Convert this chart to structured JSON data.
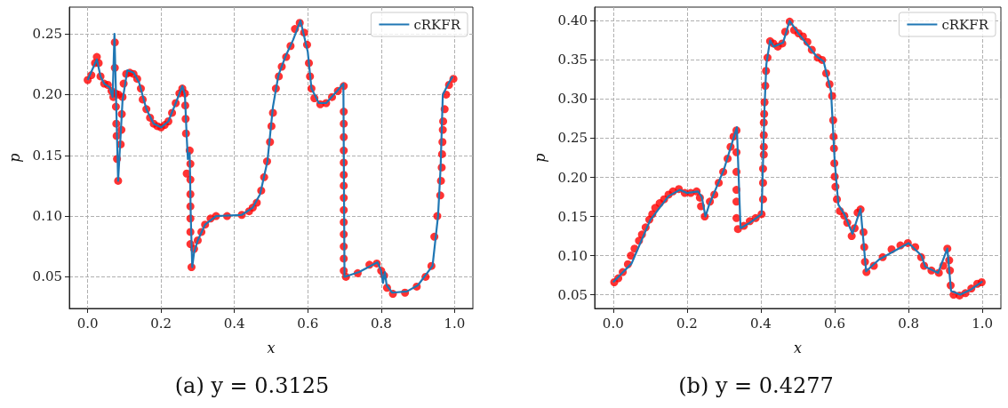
{
  "chart_data": [
    {
      "type": "scatter",
      "title": "(a) y = 0.3125",
      "xlabel": "x",
      "ylabel": "p",
      "xlim": [
        -0.05,
        1.05
      ],
      "ylim": [
        0.024,
        0.272
      ],
      "xticks": [
        {
          "value": 0,
          "label": "0.0"
        },
        {
          "value": 0.2,
          "label": "0.2"
        },
        {
          "value": 0.4,
          "label": "0.4"
        },
        {
          "value": 0.6,
          "label": "0.6"
        },
        {
          "value": 0.8,
          "label": "0.8"
        },
        {
          "value": 1,
          "label": "1.0"
        }
      ],
      "yticks": [
        {
          "value": 0.05,
          "label": "0.05"
        },
        {
          "value": 0.1,
          "label": "0.10"
        },
        {
          "value": 0.15,
          "label": "0.15"
        },
        {
          "value": 0.2,
          "label": "0.20"
        },
        {
          "value": 0.25,
          "label": "0.25"
        }
      ],
      "grid": true,
      "legend": "top right",
      "line_style": "solid",
      "series": [
        {
          "marker": "circle",
          "color": "#ff0000",
          "x": [
            0,
            0.01,
            0.02,
            0.025,
            0.03,
            0.035,
            0.045,
            0.055,
            0.065,
            0.07,
            0.074,
            0.074,
            0.076,
            0.077,
            0.078,
            0.079,
            0.08,
            0.083,
            0.084,
            0.09,
            0.092,
            0.093,
            0.095,
            0.098,
            0.105,
            0.115,
            0.125,
            0.135,
            0.145,
            0.15,
            0.16,
            0.17,
            0.18,
            0.19,
            0.2,
            0.21,
            0.22,
            0.23,
            0.24,
            0.25,
            0.258,
            0.265,
            0.266,
            0.267,
            0.268,
            0.27,
            0.278,
            0.28,
            0.28,
            0.28,
            0.28,
            0.28,
            0.28,
            0.28,
            0.283,
            0.29,
            0.3,
            0.31,
            0.32,
            0.335,
            0.35,
            0.38,
            0.42,
            0.44,
            0.45,
            0.461,
            0.473,
            0.481,
            0.489,
            0.497,
            0.501,
            0.505,
            0.513,
            0.521,
            0.529,
            0.541,
            0.553,
            0.565,
            0.578,
            0.59,
            0.598,
            0.603,
            0.606,
            0.61,
            0.618,
            0.634,
            0.65,
            0.666,
            0.682,
            0.698,
            0.698,
            0.698,
            0.698,
            0.698,
            0.698,
            0.698,
            0.698,
            0.698,
            0.698,
            0.698,
            0.698,
            0.698,
            0.698,
            0.698,
            0.704,
            0.736,
            0.768,
            0.788,
            0.8,
            0.808,
            0.816,
            0.832,
            0.865,
            0.897,
            0.921,
            0.937,
            0.945,
            0.953,
            0.961,
            0.963,
            0.965,
            0.966,
            0.967,
            0.968,
            0.969,
            0.973,
            0.977,
            0.985,
            0.997
          ],
          "values": [
            0.212,
            0.216,
            0.226,
            0.231,
            0.226,
            0.215,
            0.209,
            0.208,
            0.203,
            0.198,
            0.243,
            0.222,
            0.201,
            0.19,
            0.176,
            0.166,
            0.147,
            0.129,
            0.2,
            0.159,
            0.171,
            0.184,
            0.198,
            0.209,
            0.217,
            0.218,
            0.217,
            0.213,
            0.205,
            0.196,
            0.188,
            0.181,
            0.176,
            0.174,
            0.173,
            0.175,
            0.178,
            0.185,
            0.193,
            0.201,
            0.205,
            0.201,
            0.191,
            0.18,
            0.168,
            0.135,
            0.154,
            0.143,
            0.13,
            0.118,
            0.108,
            0.098,
            0.087,
            0.077,
            0.058,
            0.073,
            0.08,
            0.087,
            0.093,
            0.098,
            0.1,
            0.1,
            0.101,
            0.104,
            0.107,
            0.111,
            0.121,
            0.132,
            0.145,
            0.161,
            0.174,
            0.185,
            0.205,
            0.215,
            0.223,
            0.231,
            0.24,
            0.254,
            0.259,
            0.251,
            0.241,
            0.226,
            0.215,
            0.205,
            0.197,
            0.192,
            0.193,
            0.198,
            0.203,
            0.207,
            0.186,
            0.176,
            0.165,
            0.154,
            0.144,
            0.134,
            0.125,
            0.115,
            0.105,
            0.095,
            0.085,
            0.075,
            0.065,
            0.055,
            0.05,
            0.053,
            0.06,
            0.061,
            0.055,
            0.051,
            0.041,
            0.036,
            0.037,
            0.042,
            0.05,
            0.059,
            0.083,
            0.1,
            0.117,
            0.129,
            0.14,
            0.151,
            0.161,
            0.171,
            0.178,
            0.188,
            0.2,
            0.208,
            0.213
          ]
        },
        {
          "type": "line",
          "marker": "none",
          "name": "cRKFR",
          "color": "#1f77b4",
          "x": [
            0,
            0.025,
            0.035,
            0.045,
            0.06,
            0.068,
            0.073,
            0.083,
            0.095,
            0.108,
            0.125,
            0.14,
            0.16,
            0.18,
            0.2,
            0.22,
            0.24,
            0.258,
            0.265,
            0.27,
            0.273,
            0.278,
            0.281,
            0.285,
            0.29,
            0.3,
            0.32,
            0.35,
            0.42,
            0.45,
            0.47,
            0.49,
            0.505,
            0.52,
            0.54,
            0.56,
            0.58,
            0.6,
            0.61,
            0.63,
            0.65,
            0.68,
            0.697,
            0.7,
            0.74,
            0.79,
            0.8,
            0.805,
            0.81,
            0.815,
            0.83,
            0.87,
            0.9,
            0.94,
            0.955,
            0.962,
            0.968,
            0.985,
            0.995
          ],
          "values": [
            0.212,
            0.229,
            0.215,
            0.209,
            0.206,
            0.198,
            0.25,
            0.129,
            0.195,
            0.22,
            0.218,
            0.21,
            0.188,
            0.176,
            0.173,
            0.178,
            0.193,
            0.207,
            0.2,
            0.165,
            0.147,
            0.152,
            0.1,
            0.058,
            0.07,
            0.08,
            0.093,
            0.1,
            0.101,
            0.107,
            0.118,
            0.145,
            0.19,
            0.216,
            0.232,
            0.245,
            0.261,
            0.235,
            0.205,
            0.193,
            0.193,
            0.203,
            0.209,
            0.05,
            0.054,
            0.062,
            0.055,
            0.045,
            0.054,
            0.043,
            0.037,
            0.038,
            0.043,
            0.059,
            0.1,
            0.14,
            0.2,
            0.21,
            0.215
          ]
        }
      ]
    },
    {
      "type": "scatter",
      "title": "(b) y = 0.4277",
      "xlabel": "x",
      "ylabel": "p",
      "xlim": [
        -0.05,
        1.05
      ],
      "ylim": [
        0.0325,
        0.4175
      ],
      "xticks": [
        {
          "value": 0,
          "label": "0.0"
        },
        {
          "value": 0.2,
          "label": "0.2"
        },
        {
          "value": 0.4,
          "label": "0.4"
        },
        {
          "value": 0.6,
          "label": "0.6"
        },
        {
          "value": 0.8,
          "label": "0.8"
        },
        {
          "value": 1,
          "label": "1.0"
        }
      ],
      "yticks": [
        {
          "value": 0.05,
          "label": "0.05"
        },
        {
          "value": 0.1,
          "label": "0.10"
        },
        {
          "value": 0.15,
          "label": "0.15"
        },
        {
          "value": 0.2,
          "label": "0.20"
        },
        {
          "value": 0.25,
          "label": "0.25"
        },
        {
          "value": 0.3,
          "label": "0.30"
        },
        {
          "value": 0.35,
          "label": "0.35"
        },
        {
          "value": 0.4,
          "label": "0.40"
        }
      ],
      "grid": true,
      "legend": "top right",
      "line_style": "solid",
      "series": [
        {
          "marker": "circle",
          "color": "#ff0000",
          "x": [
            0.003,
            0.014,
            0.026,
            0.04,
            0.048,
            0.058,
            0.07,
            0.078,
            0.088,
            0.098,
            0.106,
            0.114,
            0.126,
            0.138,
            0.15,
            0.162,
            0.178,
            0.194,
            0.21,
            0.226,
            0.235,
            0.238,
            0.248,
            0.262,
            0.274,
            0.286,
            0.298,
            0.31,
            0.318,
            0.326,
            0.334,
            0.334,
            0.334,
            0.334,
            0.334,
            0.334,
            0.338,
            0.354,
            0.37,
            0.386,
            0.402,
            0.406,
            0.406,
            0.406,
            0.408,
            0.408,
            0.408,
            0.408,
            0.409,
            0.41,
            0.412,
            0.414,
            0.418,
            0.425,
            0.434,
            0.446,
            0.458,
            0.466,
            0.478,
            0.49,
            0.502,
            0.514,
            0.526,
            0.538,
            0.554,
            0.566,
            0.577,
            0.586,
            0.593,
            0.596,
            0.597,
            0.598,
            0.599,
            0.6,
            0.602,
            0.606,
            0.614,
            0.626,
            0.634,
            0.646,
            0.654,
            0.662,
            0.67,
            0.678,
            0.68,
            0.682,
            0.686,
            0.706,
            0.73,
            0.754,
            0.778,
            0.798,
            0.818,
            0.834,
            0.842,
            0.862,
            0.882,
            0.894,
            0.905,
            0.91,
            0.912,
            0.914,
            0.922,
            0.938,
            0.954,
            0.97,
            0.986,
            0.998
          ],
          "values": [
            0.066,
            0.071,
            0.079,
            0.089,
            0.1,
            0.109,
            0.119,
            0.127,
            0.136,
            0.146,
            0.153,
            0.161,
            0.167,
            0.172,
            0.178,
            0.182,
            0.185,
            0.18,
            0.18,
            0.182,
            0.174,
            0.163,
            0.15,
            0.169,
            0.178,
            0.193,
            0.207,
            0.224,
            0.239,
            0.252,
            0.26,
            0.232,
            0.207,
            0.184,
            0.169,
            0.148,
            0.134,
            0.138,
            0.144,
            0.148,
            0.153,
            0.172,
            0.193,
            0.211,
            0.229,
            0.239,
            0.254,
            0.27,
            0.281,
            0.296,
            0.317,
            0.336,
            0.353,
            0.374,
            0.371,
            0.367,
            0.371,
            0.386,
            0.399,
            0.388,
            0.384,
            0.38,
            0.373,
            0.363,
            0.353,
            0.35,
            0.333,
            0.319,
            0.304,
            0.273,
            0.252,
            0.237,
            0.218,
            0.201,
            0.188,
            0.172,
            0.157,
            0.151,
            0.142,
            0.125,
            0.135,
            0.155,
            0.159,
            0.13,
            0.111,
            0.092,
            0.079,
            0.087,
            0.098,
            0.108,
            0.113,
            0.116,
            0.111,
            0.098,
            0.087,
            0.081,
            0.078,
            0.087,
            0.109,
            0.094,
            0.081,
            0.062,
            0.05,
            0.049,
            0.052,
            0.058,
            0.064,
            0.066
          ]
        },
        {
          "type": "line",
          "marker": "none",
          "name": "cRKFR",
          "color": "#1f77b4",
          "x": [
            0,
            0.05,
            0.1,
            0.15,
            0.18,
            0.2,
            0.23,
            0.24,
            0.25,
            0.26,
            0.3,
            0.335,
            0.345,
            0.37,
            0.402,
            0.41,
            0.415,
            0.425,
            0.435,
            0.46,
            0.478,
            0.5,
            0.55,
            0.57,
            0.59,
            0.6,
            0.61,
            0.626,
            0.648,
            0.67,
            0.685,
            0.72,
            0.8,
            0.835,
            0.845,
            0.88,
            0.905,
            0.915,
            0.94,
            0.97,
            1.0
          ],
          "values": [
            0.066,
            0.09,
            0.145,
            0.176,
            0.184,
            0.18,
            0.182,
            0.175,
            0.15,
            0.165,
            0.21,
            0.264,
            0.135,
            0.142,
            0.153,
            0.29,
            0.345,
            0.375,
            0.367,
            0.372,
            0.4,
            0.385,
            0.355,
            0.348,
            0.31,
            0.22,
            0.165,
            0.153,
            0.128,
            0.16,
            0.08,
            0.095,
            0.116,
            0.1,
            0.086,
            0.078,
            0.109,
            0.055,
            0.05,
            0.057,
            0.067
          ]
        }
      ]
    }
  ]
}
